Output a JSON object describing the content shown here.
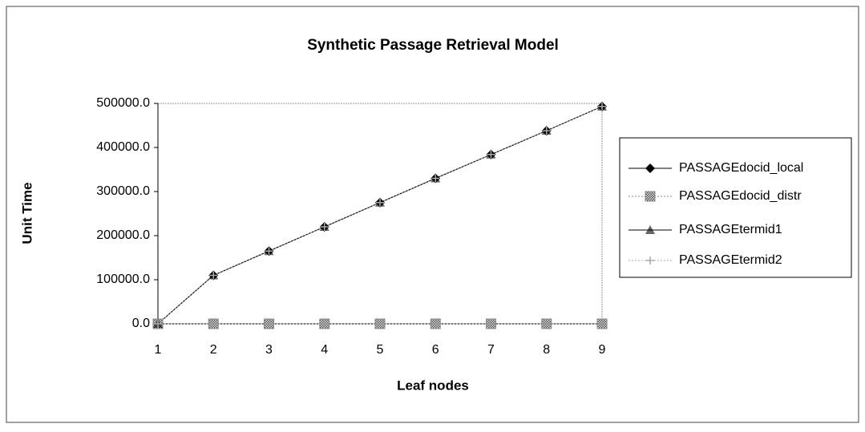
{
  "chart_data": {
    "type": "line",
    "title": "Synthetic Passage Retrieval Model",
    "x_label": "Leaf nodes",
    "y_label": "Unit Time",
    "categories": [
      "1",
      "2",
      "3",
      "4",
      "5",
      "6",
      "7",
      "8",
      "9"
    ],
    "series": [
      {
        "name": "PASSAGEdocid_local",
        "color": "#000000",
        "marker": "diamond",
        "dashed": false,
        "values": [
          0,
          110000,
          165000,
          220000,
          275000,
          330000,
          384000,
          438000,
          493000
        ]
      },
      {
        "name": "PASSAGEdocid_distr",
        "color": "#888888",
        "marker": "square",
        "dashed": true,
        "values": [
          0,
          0,
          0,
          0,
          0,
          0,
          0,
          0,
          0
        ]
      },
      {
        "name": "PASSAGEtermid1",
        "color": "#000000",
        "marker": "triangle",
        "dashed": false,
        "values": [
          0,
          110000,
          165000,
          220000,
          275000,
          330000,
          384000,
          438000,
          493000
        ]
      },
      {
        "name": "PASSAGEtermid2",
        "color": "#aaaaaa",
        "marker": "cross",
        "dashed": true,
        "values": [
          0,
          110000,
          165000,
          220000,
          275000,
          330000,
          384000,
          438000,
          493000
        ]
      }
    ],
    "ylim": [
      0,
      500000
    ],
    "yticks": [
      {
        "value": 0,
        "label": "0.0"
      },
      {
        "value": 100000,
        "label": "100000.0"
      },
      {
        "value": 200000,
        "label": "200000.0"
      },
      {
        "value": 300000,
        "label": "300000.0"
      },
      {
        "value": 400000,
        "label": "400000.0"
      },
      {
        "value": 500000,
        "label": "500000.0"
      }
    ],
    "legend": "right"
  }
}
